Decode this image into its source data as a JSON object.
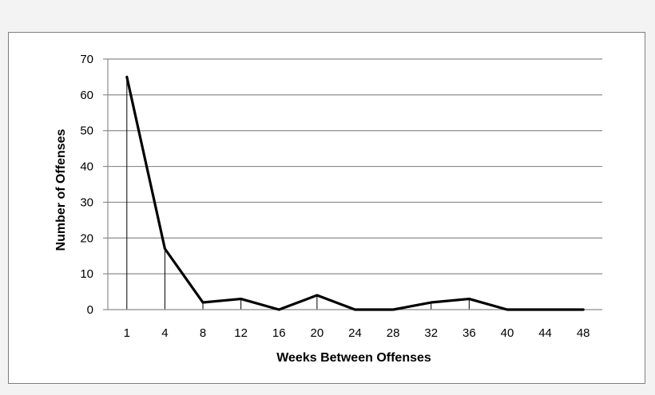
{
  "chart_data": {
    "type": "line",
    "title": "",
    "xlabel": "Weeks Between Offenses",
    "ylabel": "Number of Offenses",
    "categories": [
      "1",
      "4",
      "8",
      "12",
      "16",
      "20",
      "24",
      "28",
      "32",
      "36",
      "40",
      "44",
      "48"
    ],
    "values": [
      65,
      17,
      2,
      3,
      0,
      4,
      0,
      0,
      2,
      3,
      0,
      0,
      0
    ],
    "y_ticks": [
      "0",
      "10",
      "20",
      "30",
      "40",
      "50",
      "60",
      "70"
    ],
    "ylim": [
      0,
      70
    ],
    "grid": "horizontal",
    "drop_lines": true,
    "legend": "none",
    "line_color": "#000000",
    "grid_color": "#8c8c8c"
  }
}
